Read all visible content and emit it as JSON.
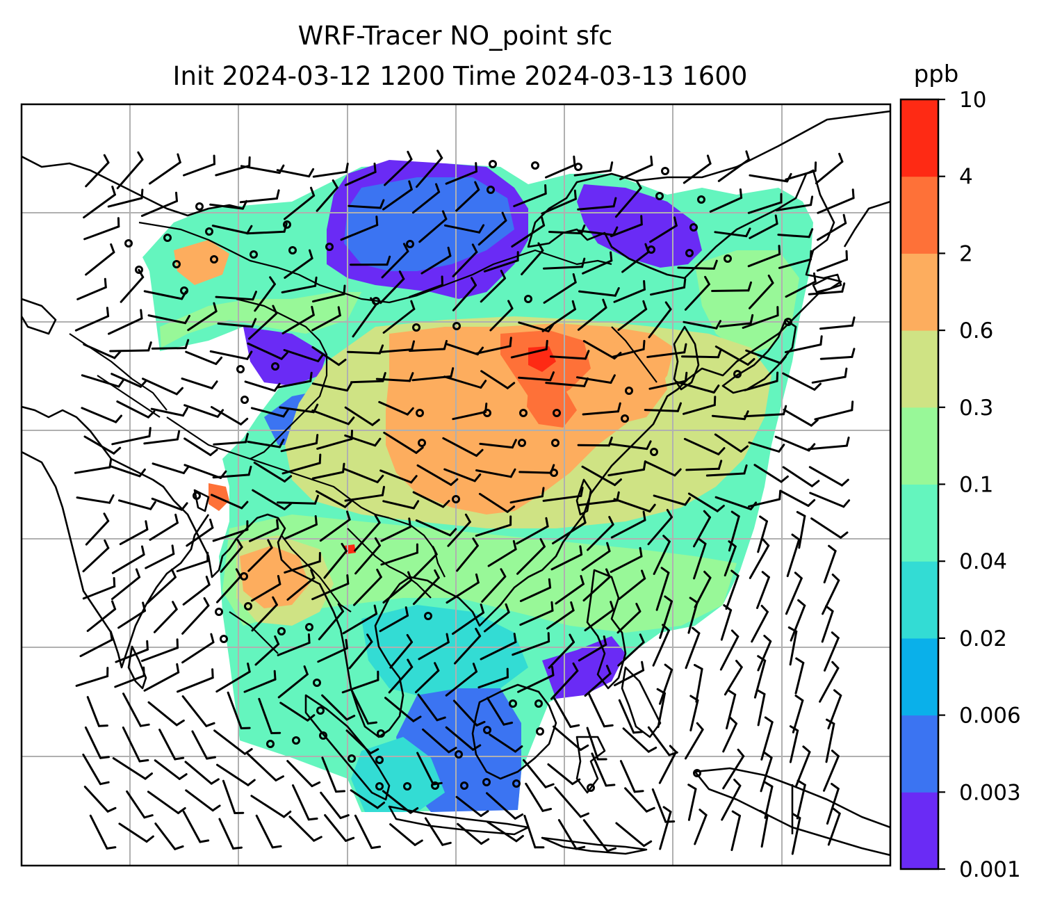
{
  "figure": {
    "title_line1": "WRF-Tracer NO_point sfc",
    "title_line2": "Init 2024-03-12 1200 Time 2024-03-13 1600"
  },
  "colorbar": {
    "unit": "ppb",
    "levels": [
      "0.001",
      "0.003",
      "0.006",
      "0.02",
      "0.04",
      "0.1",
      "0.3",
      "0.6",
      "2",
      "4",
      "10"
    ],
    "colors": [
      "#6a2bf5",
      "#3b74f2",
      "#0ab0ea",
      "#33dcd4",
      "#64f5be",
      "#98f898",
      "#cfe384",
      "#fdad5e",
      "#fe7138",
      "#fe2a14"
    ]
  },
  "map": {
    "gridlines": true,
    "coastlines": true,
    "wind_barbs": true,
    "field_colors": {
      "very_low": "#6a2bf5",
      "low": "#3b74f2",
      "cyan": "#33dcd4",
      "teal": "#64f5be",
      "green": "#98f898",
      "olive": "#cfe384",
      "orange": "#fdad5e",
      "red_orange": "#fe7138",
      "red": "#fe2a14"
    }
  }
}
